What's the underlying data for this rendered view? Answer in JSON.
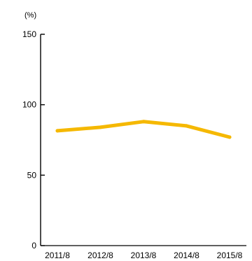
{
  "chart_data": {
    "type": "line",
    "unit_label": "(%)",
    "categories": [
      "2011/8",
      "2012/8",
      "2013/8",
      "2014/8",
      "2015/8"
    ],
    "series": [
      {
        "values": [
          81.5,
          84,
          88,
          85,
          77
        ]
      }
    ],
    "y_ticks": [
      0,
      50,
      100,
      150
    ],
    "ylim": [
      0,
      150
    ],
    "grid": false,
    "line_color": "#f5b800",
    "axis_color": "#000000"
  }
}
